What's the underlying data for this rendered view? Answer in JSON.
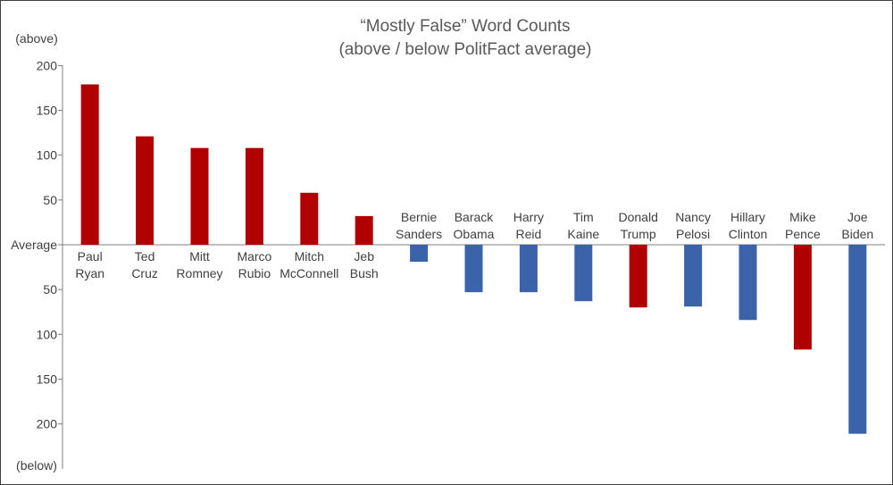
{
  "chart_data": {
    "type": "bar",
    "title": "“Mostly False” Word Counts",
    "subtitle": "(above / below PolitFact average)",
    "ylabel_top": "(above)",
    "ylabel_bottom": "(below)",
    "zero_label": "Average",
    "ylim": [
      -250,
      200
    ],
    "y_ticks": [
      {
        "value": 200,
        "label": "200"
      },
      {
        "value": 150,
        "label": "150"
      },
      {
        "value": 100,
        "label": "100"
      },
      {
        "value": 50,
        "label": "50"
      },
      {
        "value": 0,
        "label": "Average"
      },
      {
        "value": -50,
        "label": "50"
      },
      {
        "value": -100,
        "label": "100"
      },
      {
        "value": -150,
        "label": "150"
      },
      {
        "value": -200,
        "label": "200"
      }
    ],
    "grid": false,
    "legend": "none",
    "colors": {
      "republican": "#b00000",
      "democrat": "#3a63aa",
      "axis": "#7f7f7f",
      "text": "#404040"
    },
    "categories": [
      {
        "line1": "Paul",
        "line2": "Ryan",
        "value": 179,
        "party": "republican"
      },
      {
        "line1": "Ted",
        "line2": "Cruz",
        "value": 121,
        "party": "republican"
      },
      {
        "line1": "Mitt",
        "line2": "Romney",
        "value": 108,
        "party": "republican"
      },
      {
        "line1": "Marco",
        "line2": "Rubio",
        "value": 108,
        "party": "republican"
      },
      {
        "line1": "Mitch",
        "line2": "McConnell",
        "value": 58,
        "party": "republican"
      },
      {
        "line1": "Jeb",
        "line2": "Bush",
        "value": 32,
        "party": "republican"
      },
      {
        "line1": "Bernie",
        "line2": "Sanders",
        "value": -19,
        "party": "democrat"
      },
      {
        "line1": "Barack",
        "line2": "Obama",
        "value": -53,
        "party": "democrat"
      },
      {
        "line1": "Harry",
        "line2": "Reid",
        "value": -53,
        "party": "democrat"
      },
      {
        "line1": "Tim",
        "line2": "Kaine",
        "value": -63,
        "party": "democrat"
      },
      {
        "line1": "Donald",
        "line2": "Trump",
        "value": -70,
        "party": "republican"
      },
      {
        "line1": "Nancy",
        "line2": "Pelosi",
        "value": -69,
        "party": "democrat"
      },
      {
        "line1": "Hillary",
        "line2": "Clinton",
        "value": -84,
        "party": "democrat"
      },
      {
        "line1": "Mike",
        "line2": "Pence",
        "value": -117,
        "party": "republican"
      },
      {
        "line1": "Joe",
        "line2": "Biden",
        "value": -211,
        "party": "democrat"
      }
    ]
  }
}
